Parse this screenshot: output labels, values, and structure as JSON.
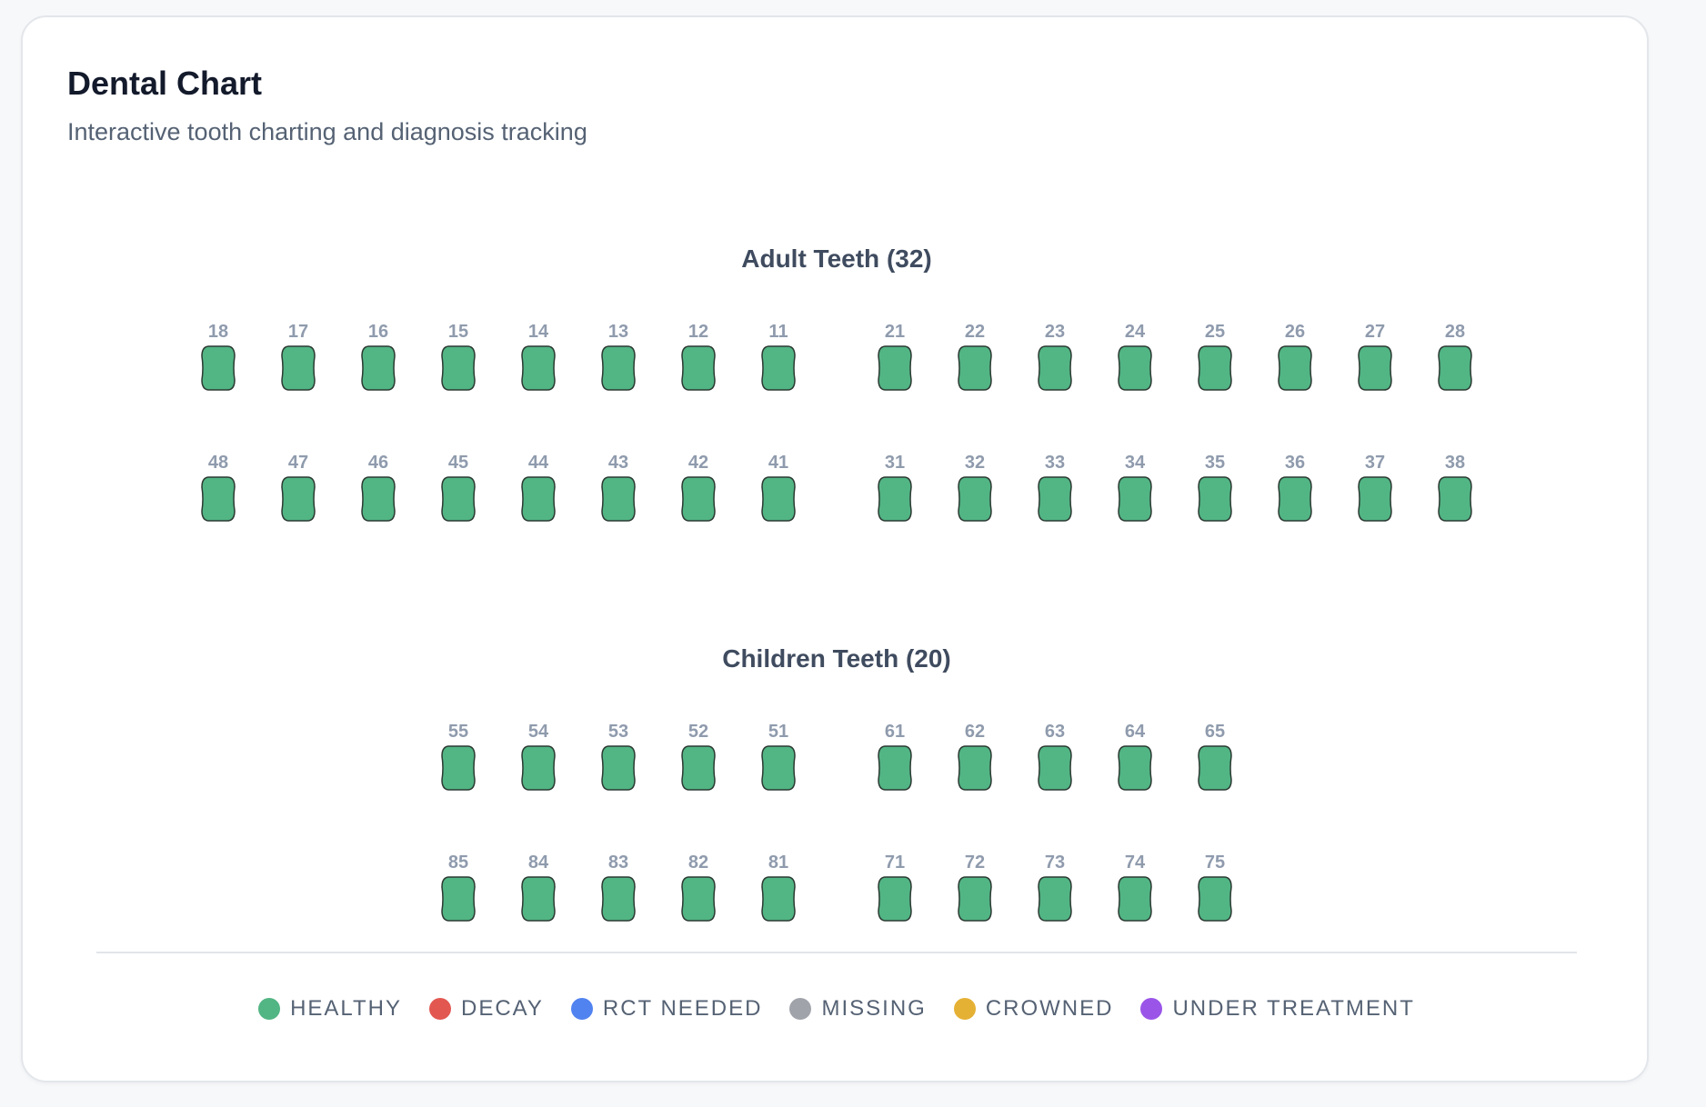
{
  "header": {
    "title": "Dental Chart",
    "subtitle": "Interactive tooth charting and diagnosis tracking"
  },
  "adult": {
    "title": "Adult Teeth (32)",
    "upper_right": [
      "18",
      "17",
      "16",
      "15",
      "14",
      "13",
      "12",
      "11"
    ],
    "upper_left": [
      "21",
      "22",
      "23",
      "24",
      "25",
      "26",
      "27",
      "28"
    ],
    "lower_right": [
      "48",
      "47",
      "46",
      "45",
      "44",
      "43",
      "42",
      "41"
    ],
    "lower_left": [
      "31",
      "32",
      "33",
      "34",
      "35",
      "36",
      "37",
      "38"
    ]
  },
  "children": {
    "title": "Children Teeth (20)",
    "upper_right": [
      "55",
      "54",
      "53",
      "52",
      "51"
    ],
    "upper_left": [
      "61",
      "62",
      "63",
      "64",
      "65"
    ],
    "lower_right": [
      "85",
      "84",
      "83",
      "82",
      "81"
    ],
    "lower_left": [
      "71",
      "72",
      "73",
      "74",
      "75"
    ]
  },
  "tooth_status": "healthy",
  "legend": [
    {
      "key": "healthy",
      "label": "HEALTHY",
      "color": "#52b584"
    },
    {
      "key": "decay",
      "label": "DECAY",
      "color": "#e25851"
    },
    {
      "key": "rct-needed",
      "label": "RCT NEEDED",
      "color": "#5183f0"
    },
    {
      "key": "missing",
      "label": "MISSING",
      "color": "#a1a3ab"
    },
    {
      "key": "crowned",
      "label": "CROWNED",
      "color": "#e5b135"
    },
    {
      "key": "under-treatment",
      "label": "UNDER TREATMENT",
      "color": "#9a55e8"
    }
  ],
  "colors": {
    "tooth_outline": "#2b3a33"
  }
}
